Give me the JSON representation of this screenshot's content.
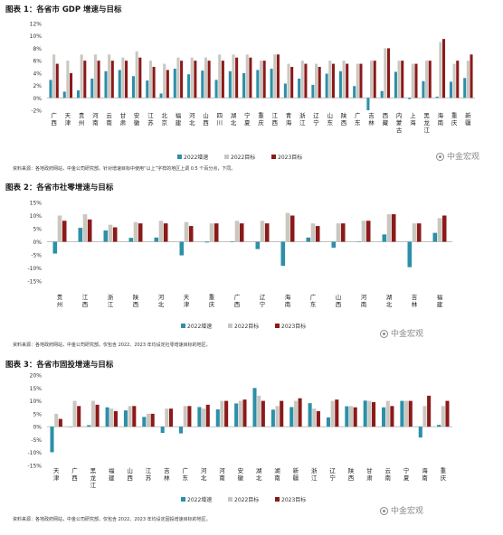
{
  "colors": {
    "s2022": "#2d8fa8",
    "t2022": "#c9c7c0",
    "t2023": "#8b1a1a",
    "axis": "#aaaaaa"
  },
  "chart_data": [
    {
      "type": "bar",
      "title": "图表 1：各省市 GDP 增速与目标",
      "source": "资料来源：各地政府网站，中金公司研究部。针对增速目标中使用“以上”字样的地区上调 0.5 个百分点，下同。",
      "watermark": "中金宏观",
      "ylim": [
        -2,
        12
      ],
      "yticks": [
        -2,
        0,
        2,
        4,
        6,
        8,
        10,
        12
      ],
      "ytick_format": "percent",
      "categories": [
        "广西",
        "天津",
        "贵州",
        "河南",
        "云南",
        "甘肃",
        "安徽",
        "江苏",
        "北京",
        "福建",
        "河北",
        "山西",
        "四川",
        "湖北",
        "宁夏",
        "重庆",
        "江西",
        "青海",
        "浙江",
        "辽宁",
        "山东",
        "陕西",
        "广东",
        "吉林",
        "西藏",
        "内蒙古",
        "上海",
        "黑龙江",
        "海南",
        "重庆",
        "新疆"
      ],
      "series": [
        {
          "name": "2022增速",
          "values": [
            2.9,
            1.0,
            1.2,
            3.1,
            4.3,
            4.5,
            3.5,
            2.8,
            0.7,
            4.7,
            3.8,
            4.4,
            2.9,
            4.3,
            4.0,
            4.5,
            4.7,
            2.3,
            3.1,
            2.1,
            3.9,
            4.3,
            1.9,
            -2.0,
            1.1,
            4.2,
            -0.2,
            2.7,
            0.2,
            2.6,
            3.2
          ]
        },
        {
          "name": "2022目标",
          "values": [
            7.0,
            6.0,
            7.0,
            7.0,
            7.0,
            6.5,
            7.5,
            6.0,
            5.5,
            6.5,
            6.5,
            6.5,
            7.0,
            7.0,
            7.0,
            6.0,
            7.0,
            5.5,
            6.0,
            5.5,
            6.0,
            6.0,
            5.5,
            6.0,
            8.0,
            6.0,
            5.5,
            6.0,
            9.0,
            5.5,
            6.0
          ]
        },
        {
          "name": "2023目标",
          "values": [
            5.5,
            4.0,
            6.0,
            6.0,
            6.0,
            6.0,
            6.5,
            5.0,
            4.5,
            6.0,
            6.0,
            6.0,
            6.0,
            6.5,
            6.5,
            6.0,
            7.0,
            5.0,
            5.5,
            5.0,
            5.5,
            5.5,
            5.5,
            6.0,
            8.0,
            6.0,
            5.5,
            6.0,
            9.5,
            6.0,
            7.0
          ]
        }
      ]
    },
    {
      "type": "bar",
      "title": "图表 2：各省市社零增速与目标",
      "source": "资料来源：各地政府网站，中金公司研究部。仅包含 2022、2023 年均设定社零增速目标的地区。",
      "watermark": "中金宏观",
      "ylim": [
        -15,
        15
      ],
      "yticks": [
        -15,
        -10,
        -5,
        0,
        5,
        10,
        15
      ],
      "ytick_format": "percent",
      "categories": [
        "贵州",
        "江西",
        "浙江",
        "陕西",
        "河北",
        "天津",
        "重庆",
        "广西",
        "辽宁",
        "海南",
        "广东",
        "山西",
        "河南",
        "湖北",
        "吉林",
        "福建"
      ],
      "series": [
        {
          "name": "2022增速",
          "values": [
            -4.5,
            5.3,
            4.3,
            1.5,
            1.6,
            -5.2,
            -0.3,
            0.2,
            -2.8,
            -9.2,
            1.6,
            -2.3,
            0.1,
            2.8,
            -9.7,
            3.4
          ]
        },
        {
          "name": "2022目标",
          "values": [
            10.0,
            10.5,
            6.5,
            7.5,
            8.0,
            7.5,
            7.0,
            8.0,
            8.0,
            11.0,
            7.0,
            7.0,
            8.0,
            10.5,
            7.0,
            9.0
          ]
        },
        {
          "name": "2023目标",
          "values": [
            8.0,
            8.5,
            5.5,
            7.0,
            7.0,
            6.0,
            7.0,
            7.0,
            7.0,
            10.0,
            6.0,
            7.0,
            8.0,
            10.5,
            7.0,
            10.0
          ]
        }
      ]
    },
    {
      "type": "bar",
      "title": "图表 3：各省市固投增速与目标",
      "source": "资料来源：各地政府网站，中金公司研究部。仅包含 2022、2023 年均设定固投增速目标的地区。",
      "watermark": "中金宏观",
      "ylim": [
        -15,
        20
      ],
      "yticks": [
        -15,
        -10,
        -5,
        0,
        5,
        10,
        15,
        20
      ],
      "ytick_format": "percent",
      "categories": [
        "天津",
        "广西",
        "黑龙江",
        "福建",
        "山西",
        "江苏",
        "吉林",
        "广东",
        "河北",
        "河南",
        "安徽",
        "湖北",
        "湖南",
        "新疆",
        "浙江",
        "辽宁",
        "陕西",
        "甘肃",
        "云南",
        "宁夏",
        "海南",
        "重庆"
      ],
      "series": [
        {
          "name": "2022增速",
          "values": [
            -9.9,
            0.0,
            0.6,
            7.5,
            6.3,
            3.8,
            -2.4,
            -2.6,
            7.6,
            6.7,
            9.0,
            15.0,
            6.6,
            7.6,
            9.1,
            3.6,
            7.9,
            10.1,
            7.5,
            10.0,
            -4.2,
            0.7
          ]
        },
        {
          "name": "2022目标",
          "values": [
            5.0,
            10.0,
            10.0,
            7.0,
            8.0,
            5.0,
            7.0,
            8.0,
            7.0,
            10.0,
            10.0,
            12.0,
            8.0,
            10.0,
            7.0,
            10.0,
            8.0,
            10.0,
            10.0,
            10.0,
            8.0,
            8.0
          ]
        },
        {
          "name": "2023目标",
          "values": [
            3.0,
            8.0,
            8.5,
            6.0,
            8.0,
            5.0,
            7.0,
            8.0,
            8.5,
            10.0,
            10.5,
            10.0,
            10.0,
            11.0,
            6.0,
            10.5,
            7.5,
            9.5,
            8.0,
            10.0,
            12.0,
            10.0
          ]
        }
      ]
    }
  ]
}
